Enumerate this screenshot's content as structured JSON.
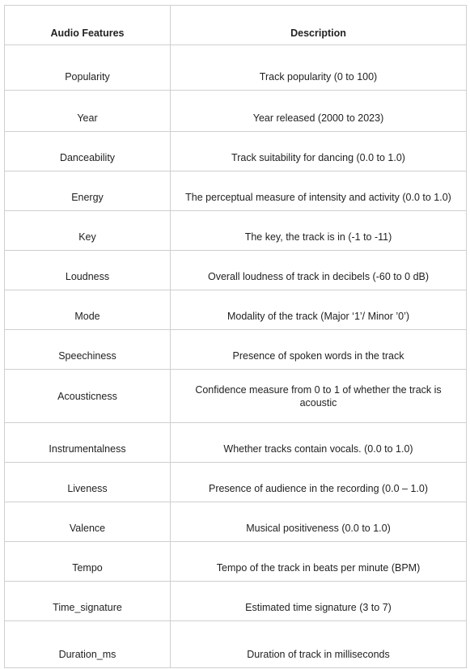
{
  "table": {
    "headers": [
      "Audio Features",
      "Description"
    ],
    "rows": [
      {
        "feature": "Popularity",
        "description": "Track popularity (0 to 100)"
      },
      {
        "feature": "Year",
        "description": "Year released (2000 to 2023)"
      },
      {
        "feature": "Danceability",
        "description": "Track suitability for dancing (0.0 to 1.0)"
      },
      {
        "feature": "Energy",
        "description": "The perceptual measure of intensity and activity (0.0 to 1.0)"
      },
      {
        "feature": "Key",
        "description": "The key, the track is in (-1 to -11)"
      },
      {
        "feature": "Loudness",
        "description": "Overall loudness of track in decibels (-60 to 0 dB)"
      },
      {
        "feature": "Mode",
        "description": "Modality of the track (Major ‘1’/ Minor ’0’)"
      },
      {
        "feature": "Speechiness",
        "description": "Presence of spoken words in the track"
      },
      {
        "feature": "Acousticness",
        "description": "Confidence measure from 0 to 1 of whether the track is acoustic"
      },
      {
        "feature": "Instrumentalness",
        "description": "Whether tracks contain vocals. (0.0 to 1.0)"
      },
      {
        "feature": "Liveness",
        "description": "Presence of audience in the recording (0.0 – 1.0)"
      },
      {
        "feature": "Valence",
        "description": "Musical positiveness (0.0 to 1.0)"
      },
      {
        "feature": "Tempo",
        "description": "Tempo of the track in beats per minute (BPM)"
      },
      {
        "feature": "Time_signature",
        "description": "Estimated time signature (3 to 7)"
      },
      {
        "feature": "Duration_ms",
        "description": "Duration of track in milliseconds"
      }
    ]
  }
}
